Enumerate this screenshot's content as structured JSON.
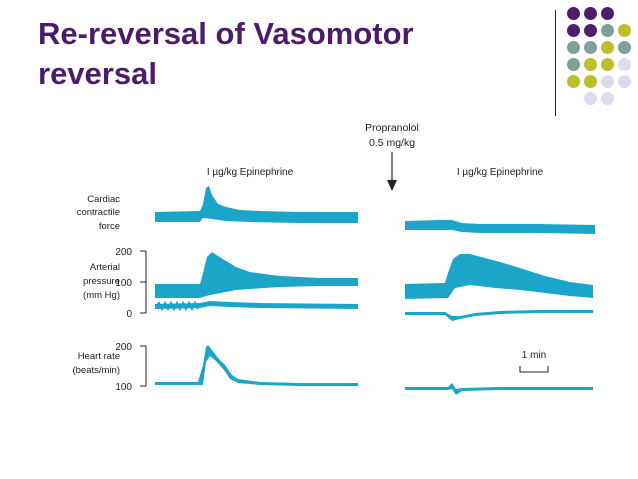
{
  "slide": {
    "title_line1": "Re-reversal of Vasomotor",
    "title_line2": "reversal"
  },
  "colors": {
    "title": "#4b1c6a",
    "trace": "#1ba6c9",
    "dots": [
      "#4f1e6b",
      "#7f9f9b",
      "#bcbf2c",
      "#dcdcea"
    ]
  },
  "figure": {
    "annotation_line1": "Propranolol",
    "annotation_line2": "0.5 mg/kg",
    "left_label": "I µg/kg Epinephrine",
    "right_label": "I µg/kg Epinephrine",
    "cardiac_label": [
      "Cardiac",
      "contractile",
      "force"
    ],
    "arterial_label": [
      "Arterial",
      "pressure",
      "(mm Hg)"
    ],
    "heart_label": [
      "Heart rate",
      "(beats/min)"
    ],
    "ap_ticks": [
      "200",
      "100",
      "0"
    ],
    "hr_ticks": [
      "200",
      "100"
    ],
    "time_scale": "1 min"
  }
}
